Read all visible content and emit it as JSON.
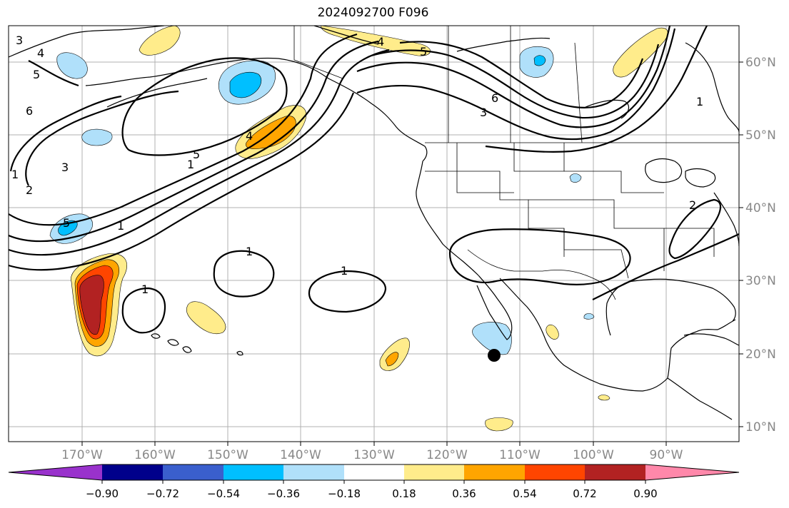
{
  "title": "2024092700 F096",
  "map": {
    "lat_labels": [
      {
        "lat": 60,
        "text": "60°N"
      },
      {
        "lat": 50,
        "text": "50°N"
      },
      {
        "lat": 40,
        "text": "40°N"
      },
      {
        "lat": 30,
        "text": "30°N"
      },
      {
        "lat": 20,
        "text": "20°N"
      },
      {
        "lat": 10,
        "text": "10°N"
      }
    ],
    "lon_labels": [
      {
        "lon": -170,
        "text": "170°W"
      },
      {
        "lon": -160,
        "text": "160°W"
      },
      {
        "lon": -150,
        "text": "150°W"
      },
      {
        "lon": -140,
        "text": "140°W"
      },
      {
        "lon": -130,
        "text": "130°W"
      },
      {
        "lon": -120,
        "text": "120°W"
      },
      {
        "lon": -110,
        "text": "110°W"
      },
      {
        "lon": -100,
        "text": "100°W"
      },
      {
        "lon": -90,
        "text": "90°W"
      }
    ],
    "contour_labels": [
      "3",
      "4",
      "5",
      "6",
      "1",
      "2",
      "3",
      "5",
      "1",
      "1",
      "1",
      "1",
      "4",
      "5",
      "6",
      "3",
      "1",
      "2",
      "1",
      "4",
      "5"
    ],
    "marker": {
      "lat": 19.8,
      "lon": -113.5
    }
  },
  "colorbar": {
    "colors": [
      "#9932cc",
      "#00008b",
      "#3a5fcd",
      "#00bfff",
      "#b0e0fa",
      "#ffffff",
      "#ffec8b",
      "#ffa500",
      "#ff4500",
      "#b22222",
      "#ff88aa"
    ],
    "tick_labels": [
      "−0.90",
      "−0.72",
      "−0.54",
      "−0.36",
      "−0.18",
      "0.18",
      "0.36",
      "0.54",
      "0.72",
      "0.90"
    ]
  }
}
